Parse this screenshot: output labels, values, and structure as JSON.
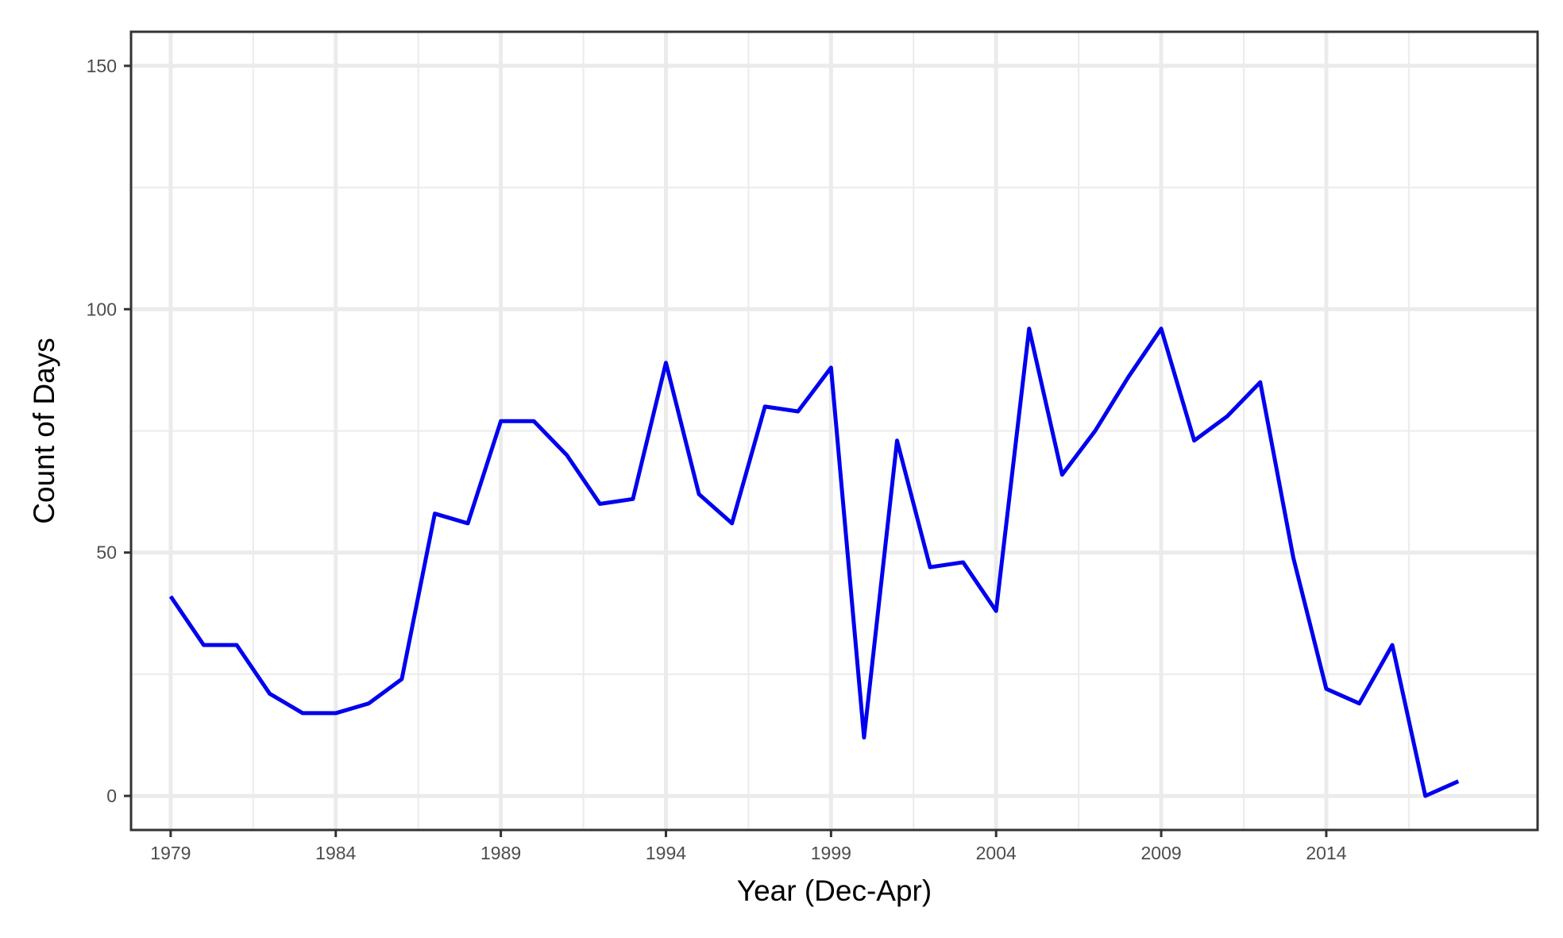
{
  "chart_data": {
    "type": "line",
    "title": "",
    "xlabel": "Year (Dec-Apr)",
    "ylabel": "Count of Days",
    "xlim": [
      1977.8,
      2020.4
    ],
    "ylim": [
      -7,
      157
    ],
    "x_ticks": [
      1979,
      1984,
      1989,
      1994,
      1999,
      2004,
      2009,
      2014
    ],
    "x_tick_labels": [
      "1979",
      "1984",
      "1989",
      "1994",
      "1999",
      "2004",
      "2009",
      "2014"
    ],
    "x_minor_grid": [
      1981.5,
      1986.5,
      1991.5,
      1996.5,
      2001.5,
      2006.5,
      2011.5,
      2016.5
    ],
    "y_ticks": [
      0,
      50,
      100,
      150
    ],
    "y_tick_labels": [
      "0",
      "50",
      "100",
      "150"
    ],
    "y_minor_grid": [
      25,
      75,
      125
    ],
    "grid": true,
    "legend": "none",
    "colors": {
      "line": "#0000ee",
      "grid": "#ebebeb",
      "panel_border": "#333333",
      "background": "#ffffff"
    },
    "series": [
      {
        "x": [
          1979,
          1980,
          1981,
          1982,
          1983,
          1984,
          1985,
          1986,
          1987,
          1988,
          1989,
          1990,
          1991,
          1992,
          1993,
          1994,
          1995,
          1996,
          1997,
          1998,
          1999,
          2000,
          2001,
          2002,
          2003,
          2004,
          2005,
          2006,
          2007,
          2008,
          2009,
          2010,
          2011,
          2012,
          2013,
          2014,
          2015,
          2016,
          2017,
          2018
        ],
        "values": [
          41,
          31,
          31,
          21,
          17,
          17,
          19,
          24,
          58,
          56,
          77,
          77,
          70,
          60,
          61,
          89,
          62,
          56,
          80,
          79,
          88,
          12,
          73,
          47,
          48,
          38,
          96,
          66,
          75,
          86,
          96,
          73,
          78,
          85,
          49,
          22,
          19,
          31,
          0,
          3
        ]
      }
    ]
  }
}
